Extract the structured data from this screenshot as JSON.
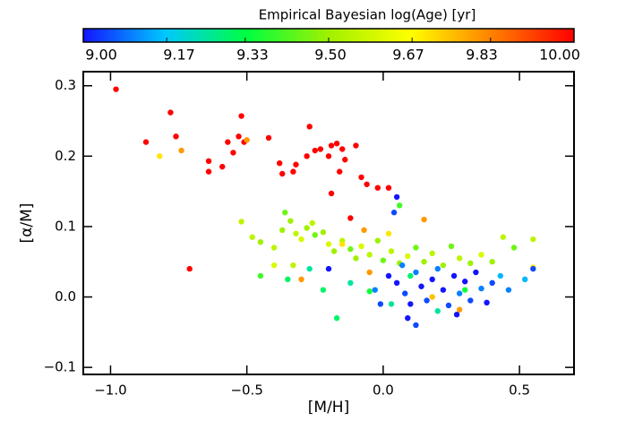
{
  "chart_data": {
    "type": "scatter",
    "xlabel": "[M/H]",
    "ylabel": "[α/M]",
    "xlim": [
      -1.1,
      0.7
    ],
    "ylim": [
      -0.11,
      0.32
    ],
    "xticks": [
      {
        "value": -1.0,
        "label": "−1.0"
      },
      {
        "value": -0.5,
        "label": "−0.5"
      },
      {
        "value": 0.0,
        "label": "0.0"
      },
      {
        "value": 0.5,
        "label": "0.5"
      }
    ],
    "yticks": [
      {
        "value": -0.1,
        "label": "−0.1"
      },
      {
        "value": 0.0,
        "label": "0.0"
      },
      {
        "value": 0.1,
        "label": "0.1"
      },
      {
        "value": 0.2,
        "label": "0.2"
      },
      {
        "value": 0.3,
        "label": "0.3"
      }
    ],
    "colorbar": {
      "label": "Empirical Bayesian log(Age) [yr]",
      "lim": [
        9.0,
        10.0
      ],
      "ticks": [
        {
          "value": 9.0,
          "label": "9.00"
        },
        {
          "value": 9.17,
          "label": "9.17"
        },
        {
          "value": 9.33,
          "label": "9.33"
        },
        {
          "value": 9.5,
          "label": "9.50"
        },
        {
          "value": 9.67,
          "label": "9.67"
        },
        {
          "value": 9.83,
          "label": "9.83"
        },
        {
          "value": 10.0,
          "label": "10.00"
        }
      ],
      "colormap": [
        "#1414ff",
        "#00c8ff",
        "#00ff40",
        "#a0f000",
        "#ffff00",
        "#ff8000",
        "#ff0000"
      ]
    },
    "x": [
      -0.98,
      -0.87,
      -0.78,
      -0.76,
      -0.82,
      -0.74,
      -0.64,
      -0.64,
      -0.59,
      -0.57,
      -0.55,
      -0.53,
      -0.52,
      -0.51,
      -0.5,
      -0.42,
      -0.38,
      -0.37,
      -0.33,
      -0.32,
      -0.28,
      -0.27,
      -0.25,
      -0.23,
      -0.2,
      -0.19,
      -0.17,
      -0.15,
      -0.14,
      -0.16,
      -0.1,
      -0.08,
      -0.06,
      -0.02,
      0.02,
      -0.19,
      -0.71,
      -0.12,
      0.05,
      0.04,
      -0.52,
      -0.48,
      -0.45,
      -0.4,
      -0.37,
      -0.36,
      -0.34,
      -0.32,
      -0.3,
      -0.28,
      -0.26,
      -0.25,
      -0.22,
      -0.2,
      -0.18,
      -0.15,
      -0.12,
      -0.1,
      -0.08,
      -0.05,
      -0.02,
      0.0,
      0.03,
      0.06,
      0.09,
      0.12,
      0.15,
      0.18,
      0.22,
      0.25,
      0.28,
      0.32,
      0.36,
      0.4,
      0.44,
      0.48,
      0.55,
      0.55,
      -0.33,
      -0.4,
      -0.35,
      -0.27,
      -0.22,
      -0.17,
      -0.12,
      -0.05,
      0.03,
      0.1,
      0.2,
      0.3,
      -0.3,
      -0.05,
      0.18,
      0.28,
      -0.07,
      0.02,
      0.06,
      -0.15,
      -0.45,
      0.15,
      0.05,
      0.08,
      0.1,
      0.12,
      0.14,
      0.16,
      0.18,
      0.2,
      0.22,
      0.24,
      0.26,
      0.28,
      0.3,
      0.32,
      0.34,
      0.36,
      0.38,
      0.4,
      0.43,
      0.46,
      -0.01,
      0.02,
      -0.03,
      0.09,
      0.12,
      0.27,
      0.52,
      0.55,
      -0.2,
      0.07
    ],
    "values": [
      0.295,
      0.22,
      0.262,
      0.228,
      0.2,
      0.208,
      0.193,
      0.178,
      0.185,
      0.22,
      0.205,
      0.228,
      0.257,
      0.22,
      0.223,
      0.226,
      0.19,
      0.175,
      0.178,
      0.188,
      0.2,
      0.242,
      0.208,
      0.21,
      0.2,
      0.215,
      0.218,
      0.21,
      0.195,
      0.178,
      0.215,
      0.17,
      0.16,
      0.155,
      0.155,
      0.147,
      0.04,
      0.112,
      0.142,
      0.12,
      0.107,
      0.085,
      0.078,
      0.07,
      0.095,
      0.12,
      0.108,
      0.09,
      0.082,
      0.098,
      0.105,
      0.088,
      0.092,
      0.075,
      0.065,
      0.08,
      0.068,
      0.055,
      0.072,
      0.06,
      0.08,
      0.052,
      0.065,
      0.048,
      0.058,
      0.07,
      0.05,
      0.062,
      0.045,
      0.072,
      0.055,
      0.048,
      0.06,
      0.05,
      0.085,
      0.07,
      0.082,
      0.042,
      0.045,
      0.045,
      0.025,
      0.04,
      0.01,
      -0.03,
      0.02,
      0.008,
      -0.01,
      0.03,
      -0.02,
      0.01,
      0.025,
      0.035,
      0.0,
      -0.018,
      0.095,
      0.09,
      0.13,
      0.075,
      0.03,
      0.11,
      0.02,
      0.005,
      -0.01,
      0.035,
      0.015,
      -0.005,
      0.025,
      0.04,
      0.01,
      -0.012,
      0.03,
      0.005,
      0.022,
      -0.005,
      0.035,
      0.012,
      -0.008,
      0.02,
      0.03,
      0.01,
      -0.01,
      0.03,
      0.01,
      -0.03,
      -0.04,
      -0.025,
      0.025,
      0.04,
      0.04,
      0.045
    ],
    "color_values": [
      10,
      10,
      10,
      10,
      9.7,
      9.8,
      10,
      10,
      10,
      10,
      10,
      10,
      10,
      10,
      9.8,
      10,
      10,
      10,
      10,
      10,
      10,
      10,
      10,
      10,
      10,
      10,
      10,
      10,
      10,
      10,
      10,
      10,
      10,
      10,
      10,
      10,
      10,
      10,
      9.0,
      9.05,
      9.55,
      9.55,
      9.5,
      9.55,
      9.5,
      9.45,
      9.5,
      9.55,
      9.6,
      9.5,
      9.55,
      9.45,
      9.5,
      9.6,
      9.5,
      9.55,
      9.45,
      9.5,
      9.6,
      9.55,
      9.5,
      9.45,
      9.55,
      9.5,
      9.6,
      9.45,
      9.5,
      9.55,
      9.5,
      9.45,
      9.55,
      9.5,
      9.6,
      9.5,
      9.55,
      9.45,
      9.55,
      9.7,
      9.55,
      9.6,
      9.3,
      9.25,
      9.3,
      9.3,
      9.25,
      9.35,
      9.25,
      9.3,
      9.25,
      9.35,
      9.8,
      9.8,
      9.75,
      9.8,
      9.8,
      9.7,
      9.4,
      9.7,
      9.4,
      9.8,
      9.0,
      9.05,
      9.0,
      9.1,
      9.0,
      9.05,
      9.0,
      9.1,
      9.0,
      9.05,
      9.0,
      9.1,
      9.0,
      9.05,
      9.0,
      9.1,
      9.0,
      9.05,
      9.15,
      9.1,
      9.05,
      9.0,
      9.1,
      9.0,
      9.05,
      9.0,
      9.15,
      9.05,
      9.0,
      9.1
    ]
  }
}
